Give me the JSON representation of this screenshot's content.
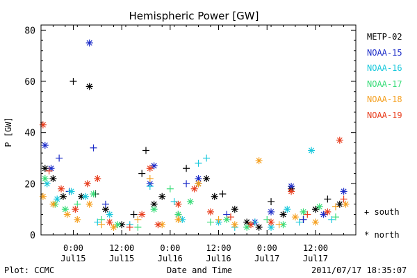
{
  "chart_data": {
    "type": "scatter",
    "title": "Hemispheric Power [GW]",
    "ylabel": "P [GW]",
    "xlabel": "Date and Time",
    "ylim": [
      0,
      82
    ],
    "yticks": [
      0,
      20,
      40,
      60,
      80
    ],
    "xlim": [
      "2011-07-14 16:00",
      "2011-07-17 22:00"
    ],
    "xticks": [
      {
        "time": "2011-07-15 00:00",
        "line1": "0:00",
        "line2": "Jul15"
      },
      {
        "time": "2011-07-15 12:00",
        "line1": "12:00",
        "line2": "Jul15"
      },
      {
        "time": "2011-07-16 00:00",
        "line1": "0:00",
        "line2": "Jul16"
      },
      {
        "time": "2011-07-16 12:00",
        "line1": "12:00",
        "line2": "Jul16"
      },
      {
        "time": "2011-07-17 00:00",
        "line1": "0:00",
        "line2": "Jul17"
      },
      {
        "time": "2011-07-17 12:00",
        "line1": "12:00",
        "line2": "Jul17"
      }
    ],
    "grid": false,
    "legend_position": "right",
    "symbols": {
      "south": "+",
      "north": "*",
      "south_label": "south",
      "north_label": "north"
    },
    "series": [
      {
        "name": "METP-02",
        "color": "#000000",
        "points": [
          [
            "2011-07-14 17:00",
            26,
            "N"
          ],
          [
            "2011-07-14 19:00",
            22,
            "N"
          ],
          [
            "2011-07-14 21:30",
            15,
            "N"
          ],
          [
            "2011-07-15 00:00",
            60,
            "S"
          ],
          [
            "2011-07-15 02:00",
            15,
            "N"
          ],
          [
            "2011-07-15 04:00",
            58,
            "N"
          ],
          [
            "2011-07-15 05:30",
            16,
            "S"
          ],
          [
            "2011-07-15 08:00",
            10,
            "N"
          ],
          [
            "2011-07-15 12:00",
            4,
            "N"
          ],
          [
            "2011-07-15 15:00",
            8,
            "S"
          ],
          [
            "2011-07-15 17:00",
            24,
            "S"
          ],
          [
            "2011-07-15 18:00",
            33,
            "S"
          ],
          [
            "2011-07-15 20:00",
            12,
            "N"
          ],
          [
            "2011-07-15 22:00",
            15,
            "N"
          ],
          [
            "2011-07-16 02:00",
            8,
            "S"
          ],
          [
            "2011-07-16 04:00",
            26,
            "S"
          ],
          [
            "2011-07-16 07:00",
            20,
            "N"
          ],
          [
            "2011-07-16 09:00",
            22,
            "N"
          ],
          [
            "2011-07-16 11:00",
            15,
            "N"
          ],
          [
            "2011-07-16 13:00",
            16,
            "S"
          ],
          [
            "2011-07-16 16:00",
            10,
            "N"
          ],
          [
            "2011-07-16 19:00",
            5,
            "N"
          ],
          [
            "2011-07-16 22:00",
            3,
            "N"
          ],
          [
            "2011-07-17 01:00",
            13,
            "S"
          ],
          [
            "2011-07-17 04:00",
            8,
            "N"
          ],
          [
            "2011-07-17 06:00",
            18,
            "N"
          ],
          [
            "2011-07-17 09:00",
            6,
            "S"
          ],
          [
            "2011-07-17 12:00",
            10,
            "N"
          ],
          [
            "2011-07-17 15:00",
            14,
            "S"
          ],
          [
            "2011-07-17 18:00",
            12,
            "N"
          ]
        ]
      },
      {
        "name": "NOAA-15",
        "color": "#1c2cc8",
        "points": [
          [
            "2011-07-14 17:00",
            35,
            "N"
          ],
          [
            "2011-07-14 18:30",
            26,
            "N"
          ],
          [
            "2011-07-14 20:30",
            30,
            "S"
          ],
          [
            "2011-07-14 23:00",
            17,
            "S"
          ],
          [
            "2011-07-15 04:00",
            75,
            "N"
          ],
          [
            "2011-07-15 05:00",
            34,
            "S"
          ],
          [
            "2011-07-15 08:00",
            12,
            "S"
          ],
          [
            "2011-07-15 19:00",
            20,
            "N"
          ],
          [
            "2011-07-15 20:00",
            27,
            "N"
          ],
          [
            "2011-07-16 04:00",
            20,
            "S"
          ],
          [
            "2011-07-16 07:00",
            22,
            "N"
          ],
          [
            "2011-07-16 14:00",
            8,
            "S"
          ],
          [
            "2011-07-16 21:00",
            5,
            "N"
          ],
          [
            "2011-07-17 01:00",
            9,
            "N"
          ],
          [
            "2011-07-17 06:00",
            19,
            "N"
          ],
          [
            "2011-07-17 09:00",
            6,
            "S"
          ],
          [
            "2011-07-17 14:00",
            8,
            "N"
          ],
          [
            "2011-07-17 19:00",
            17,
            "N"
          ]
        ]
      },
      {
        "name": "NOAA-16",
        "color": "#18c8dc",
        "points": [
          [
            "2011-07-14 17:30",
            20,
            "N"
          ],
          [
            "2011-07-14 20:00",
            14,
            "N"
          ],
          [
            "2011-07-14 23:30",
            17,
            "N"
          ],
          [
            "2011-07-15 03:00",
            15,
            "N"
          ],
          [
            "2011-07-15 06:00",
            5,
            "S"
          ],
          [
            "2011-07-15 09:00",
            8,
            "N"
          ],
          [
            "2011-07-15 14:00",
            4,
            "S"
          ],
          [
            "2011-07-15 19:00",
            19,
            "S"
          ],
          [
            "2011-07-16 01:00",
            13,
            "S"
          ],
          [
            "2011-07-16 03:00",
            6,
            "N"
          ],
          [
            "2011-07-16 07:00",
            28,
            "S"
          ],
          [
            "2011-07-16 09:00",
            30,
            "S"
          ],
          [
            "2011-07-16 12:00",
            5,
            "N"
          ],
          [
            "2011-07-16 16:00",
            3,
            "S"
          ],
          [
            "2011-07-16 21:00",
            5,
            "S"
          ],
          [
            "2011-07-17 01:00",
            3,
            "N"
          ],
          [
            "2011-07-17 05:00",
            10,
            "N"
          ],
          [
            "2011-07-17 08:00",
            5,
            "S"
          ],
          [
            "2011-07-17 11:00",
            33,
            "N"
          ],
          [
            "2011-07-17 16:00",
            6,
            "S"
          ]
        ]
      },
      {
        "name": "NOAA-17",
        "color": "#38dc78",
        "points": [
          [
            "2011-07-14 17:00",
            22,
            "N"
          ],
          [
            "2011-07-14 19:30",
            12,
            "N"
          ],
          [
            "2011-07-14 22:00",
            10,
            "N"
          ],
          [
            "2011-07-15 01:00",
            12,
            "S"
          ],
          [
            "2011-07-15 05:00",
            16,
            "N"
          ],
          [
            "2011-07-15 07:00",
            6,
            "S"
          ],
          [
            "2011-07-15 11:00",
            4,
            "N"
          ],
          [
            "2011-07-15 16:00",
            3,
            "S"
          ],
          [
            "2011-07-15 20:00",
            10,
            "N"
          ],
          [
            "2011-07-16 00:00",
            18,
            "S"
          ],
          [
            "2011-07-16 02:00",
            8,
            "N"
          ],
          [
            "2011-07-16 05:00",
            13,
            "N"
          ],
          [
            "2011-07-16 10:00",
            5,
            "S"
          ],
          [
            "2011-07-16 14:00",
            6,
            "N"
          ],
          [
            "2011-07-16 19:00",
            3,
            "N"
          ],
          [
            "2011-07-17 00:00",
            6,
            "S"
          ],
          [
            "2011-07-17 04:00",
            4,
            "N"
          ],
          [
            "2011-07-17 09:00",
            9,
            "N"
          ],
          [
            "2011-07-17 13:00",
            11,
            "N"
          ],
          [
            "2011-07-17 17:00",
            7,
            "S"
          ]
        ]
      },
      {
        "name": "NOAA-18",
        "color": "#f5a020",
        "points": [
          [
            "2011-07-14 16:30",
            15,
            "N"
          ],
          [
            "2011-07-14 19:00",
            12,
            "N"
          ],
          [
            "2011-07-14 22:30",
            8,
            "N"
          ],
          [
            "2011-07-15 01:00",
            6,
            "N"
          ],
          [
            "2011-07-15 04:00",
            12,
            "N"
          ],
          [
            "2011-07-15 07:00",
            4,
            "S"
          ],
          [
            "2011-07-15 10:00",
            3,
            "N"
          ],
          [
            "2011-07-15 16:00",
            6,
            "S"
          ],
          [
            "2011-07-15 19:00",
            22,
            "S"
          ],
          [
            "2011-07-15 22:00",
            4,
            "N"
          ],
          [
            "2011-07-16 02:00",
            6,
            "N"
          ],
          [
            "2011-07-16 07:00",
            20,
            "N"
          ],
          [
            "2011-07-16 12:00",
            6,
            "S"
          ],
          [
            "2011-07-16 16:00",
            4,
            "N"
          ],
          [
            "2011-07-16 22:00",
            29,
            "N"
          ],
          [
            "2011-07-17 03:00",
            4,
            "S"
          ],
          [
            "2011-07-17 07:00",
            7,
            "N"
          ],
          [
            "2011-07-17 12:00",
            5,
            "N"
          ],
          [
            "2011-07-17 17:00",
            11,
            "S"
          ],
          [
            "2011-07-17 19:30",
            12,
            "N"
          ]
        ]
      },
      {
        "name": "NOAA-19",
        "color": "#e83c1c",
        "points": [
          [
            "2011-07-14 16:30",
            43,
            "N"
          ],
          [
            "2011-07-14 18:00",
            25,
            "S"
          ],
          [
            "2011-07-14 21:00",
            18,
            "N"
          ],
          [
            "2011-07-15 00:30",
            10,
            "N"
          ],
          [
            "2011-07-15 03:30",
            20,
            "N"
          ],
          [
            "2011-07-15 06:00",
            22,
            "N"
          ],
          [
            "2011-07-15 09:00",
            5,
            "N"
          ],
          [
            "2011-07-15 14:00",
            3,
            "S"
          ],
          [
            "2011-07-15 17:00",
            8,
            "N"
          ],
          [
            "2011-07-15 19:00",
            26,
            "N"
          ],
          [
            "2011-07-15 21:00",
            4,
            "N"
          ],
          [
            "2011-07-16 02:00",
            12,
            "N"
          ],
          [
            "2011-07-16 06:00",
            18,
            "N"
          ],
          [
            "2011-07-16 10:00",
            9,
            "N"
          ],
          [
            "2011-07-16 15:00",
            7,
            "S"
          ],
          [
            "2011-07-16 20:00",
            4,
            "N"
          ],
          [
            "2011-07-17 01:00",
            5,
            "N"
          ],
          [
            "2011-07-17 06:00",
            17,
            "N"
          ],
          [
            "2011-07-17 10:00",
            8,
            "S"
          ],
          [
            "2011-07-17 15:00",
            9,
            "N"
          ],
          [
            "2011-07-17 18:00",
            37,
            "N"
          ],
          [
            "2011-07-17 19:00",
            14,
            "S"
          ]
        ]
      }
    ]
  },
  "footer": {
    "left": "Plot: CCMC",
    "center": "Date and Time",
    "right": "2011/07/17 18:35:07"
  }
}
